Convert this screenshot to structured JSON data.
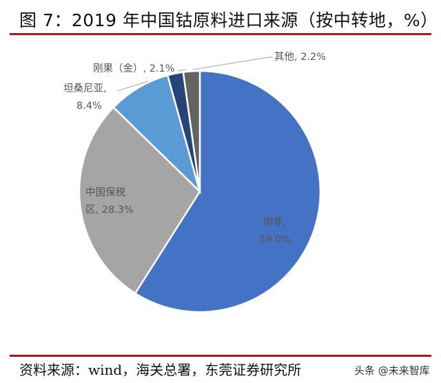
{
  "title": "图 7：2019 年中国钴原料进口来源（按中转地，%）",
  "source": "资料来源：wind，海关总署，东莞证券研究所",
  "watermark": "头条 @未来智库",
  "colors": {
    "rule": "#b8121b"
  },
  "chart_data": {
    "type": "pie",
    "title": "2019 年中国钴原料进口来源（按中转地，%）",
    "categories": [
      "南非",
      "中国保税区",
      "坦桑尼亚",
      "刚果（金）",
      "其他"
    ],
    "values": [
      59.0,
      28.3,
      8.4,
      2.1,
      2.2
    ],
    "colors": [
      "#4472c4",
      "#a5a5a5",
      "#5b9bd5",
      "#264478",
      "#636363"
    ],
    "start_angle_deg": 0,
    "direction": "clockwise",
    "labels": [
      {
        "line1": "南非,",
        "line2": "59.0%"
      },
      {
        "line1": "中国保税",
        "line2": "区, 28.3%"
      },
      {
        "line1": "坦桑尼亚,",
        "line2": "8.4%"
      },
      {
        "line1": "刚果（金）, 2.1%",
        "line2": ""
      },
      {
        "line1": "其他, 2.2%",
        "line2": ""
      }
    ],
    "legend": "none (data labels on slices)"
  }
}
